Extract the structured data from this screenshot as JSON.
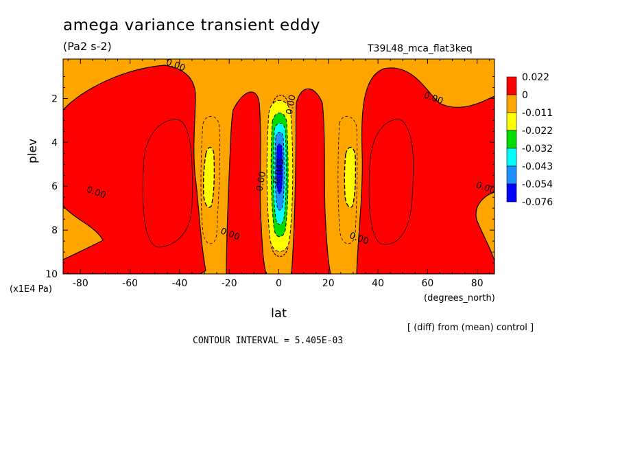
{
  "header": {
    "title": "amega variance transient eddy",
    "units": "(Pa2 s-2)",
    "run_id": "T39L48_mca_flat3keq"
  },
  "footer": {
    "diff_note": "[ (diff) from (mean) control ]",
    "contour_interval": "CONTOUR INTERVAL = 5.405E-03"
  },
  "chart_data": {
    "type": "heatmap",
    "xlabel": "lat",
    "x_units": "(degrees_north)",
    "ylabel": "plev",
    "y_units": "(x1E4 Pa)",
    "xlim": [
      -87,
      87
    ],
    "ylim": [
      10,
      0.2
    ],
    "x_ticks": [
      -80,
      -60,
      -40,
      -20,
      0,
      20,
      40,
      60,
      80
    ],
    "x_tick_labels": [
      "-80",
      "-60",
      "-40",
      "-20",
      "0",
      "20",
      "40",
      "60",
      "80"
    ],
    "y_ticks": [
      2,
      4,
      6,
      8,
      10
    ],
    "y_tick_labels": [
      "2",
      "4",
      "6",
      "8",
      "10"
    ],
    "colorbar": {
      "levels": [
        "0.022",
        "0",
        "-0.011",
        "-0.022",
        "-0.032",
        "-0.043",
        "-0.054",
        "-0.076"
      ],
      "colors": [
        "#ff0000",
        "#ffa500",
        "#ffff00",
        "#00dd00",
        "#00ffff",
        "#1e90ff",
        "#0000ff"
      ]
    },
    "contour_labels": [
      {
        "text": "0.00",
        "lat": -42,
        "plev": 0.6
      },
      {
        "text": "0.00",
        "lat": 62,
        "plev": 2.1
      },
      {
        "text": "0.00",
        "lat": -74,
        "plev": 6.4
      },
      {
        "text": "0.00",
        "lat": 83,
        "plev": 6.2
      },
      {
        "text": "0.00",
        "lat": -20,
        "plev": 8.3
      },
      {
        "text": "0.00",
        "lat": 32,
        "plev": 8.5
      },
      {
        "text": "0.00",
        "lat": 6,
        "plev": 2.3
      },
      {
        "text": "0.00",
        "lat": -6,
        "plev": 5.8
      },
      {
        "text": "-0.045",
        "lat": 1,
        "plev": 5.4
      }
    ],
    "regions": {
      "background_value_class": "0 to -0.011",
      "red_lobes_lat": [
        -50,
        -10,
        10,
        50
      ],
      "yellow_minima_lat": [
        -28,
        28
      ],
      "equatorial_minimum_lat": 0,
      "equatorial_minimum_min_class": "-0.054 to -0.076"
    }
  }
}
